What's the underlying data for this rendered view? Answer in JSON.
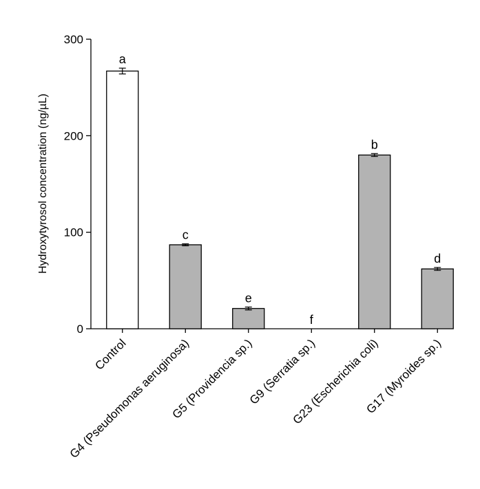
{
  "chart_data": {
    "type": "bar",
    "title": "",
    "xlabel": "",
    "ylabel": "Hydroxytyrosol concentration (ng/µL)",
    "ylim": [
      0,
      300
    ],
    "yticks": [
      0,
      100,
      200,
      300
    ],
    "grid": false,
    "categories": [
      "Control",
      "G4 (Pseudomonas aeruginosa)",
      "G5 (Providencia sp.)",
      "G9 (Serratia sp.)",
      "G23 (Escherichia coli)",
      "G17 (Myroides sp.)"
    ],
    "values": [
      267,
      87,
      21,
      0,
      180,
      62
    ],
    "errors": [
      3,
      1,
      1.5,
      0,
      1.5,
      1.5
    ],
    "significance_labels": [
      "a",
      "c",
      "e",
      "f",
      "b",
      "d"
    ],
    "bar_colors": [
      "#ffffff",
      "#b3b3b3",
      "#b3b3b3",
      "#b3b3b3",
      "#b3b3b3",
      "#b3b3b3"
    ],
    "bar_edge_color": "#000000"
  }
}
